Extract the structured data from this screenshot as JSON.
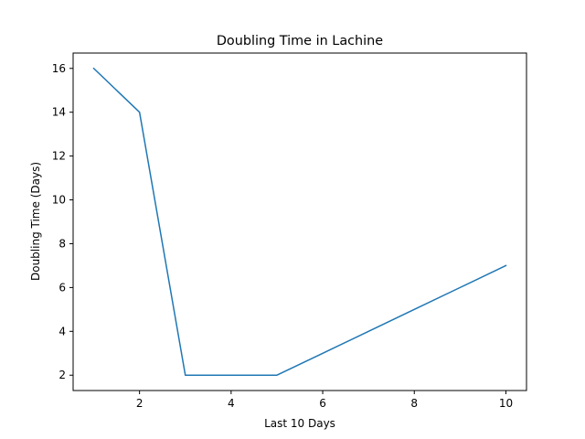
{
  "chart_data": {
    "type": "line",
    "title": "Doubling Time in  Lachine",
    "xlabel": "Last 10 Days",
    "ylabel": "Doubling Time (Days)",
    "xlim": [
      0.55,
      10.45
    ],
    "ylim": [
      1.3,
      16.7
    ],
    "xticks": [
      2,
      4,
      6,
      8,
      10
    ],
    "yticks": [
      2,
      4,
      6,
      8,
      10,
      12,
      14,
      16
    ],
    "grid": false,
    "series": [
      {
        "color": "#1f77b4",
        "x": [
          1,
          2,
          3,
          4,
          5,
          6,
          7,
          8,
          9,
          10
        ],
        "values": [
          16,
          14,
          2,
          2,
          2,
          3,
          4,
          5,
          6,
          7
        ]
      }
    ]
  }
}
